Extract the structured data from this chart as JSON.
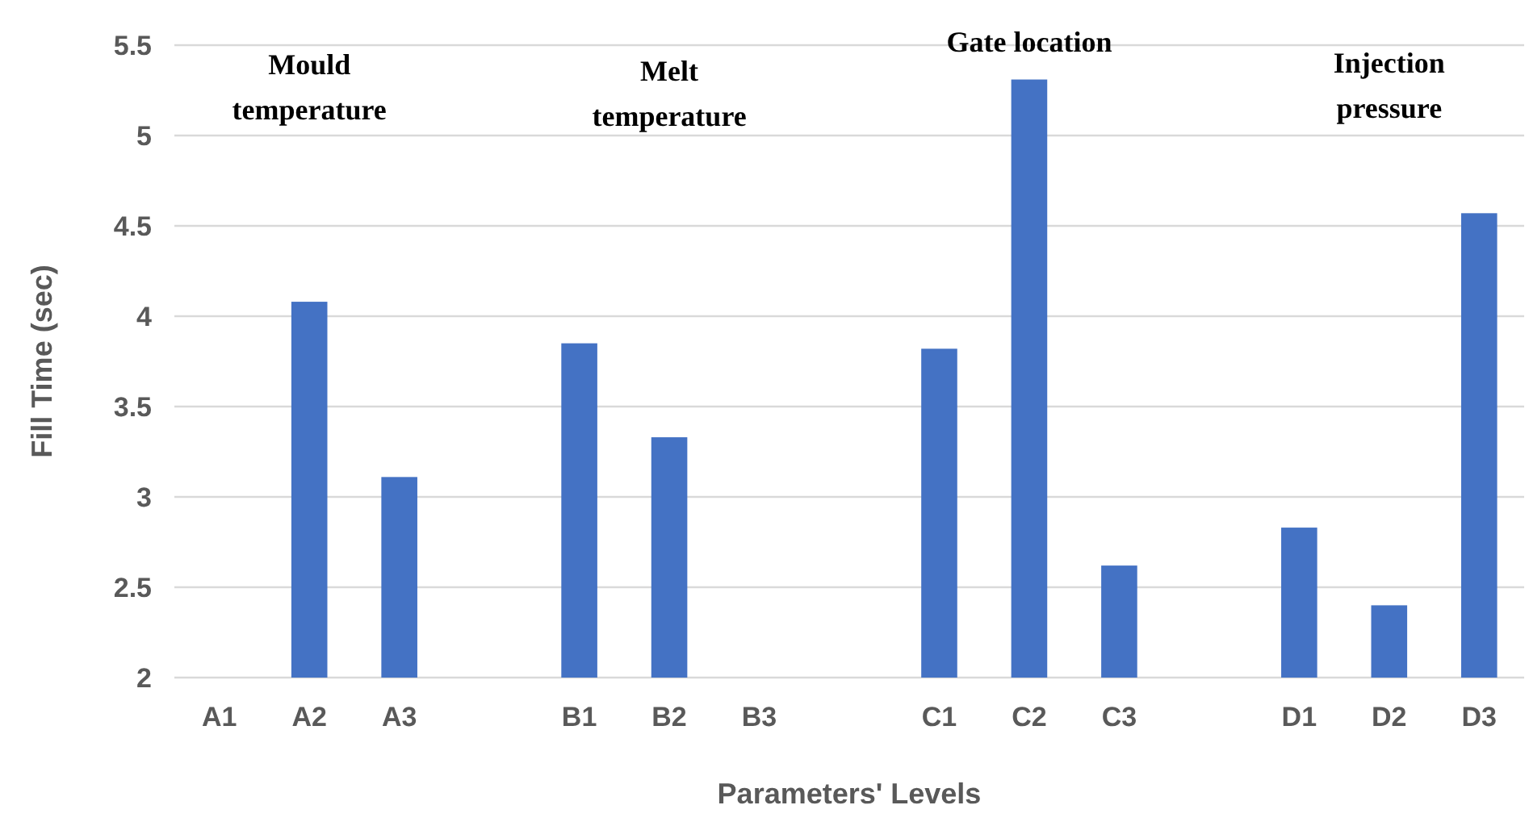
{
  "chart_data": {
    "type": "bar",
    "xlabel": "Parameters' Levels",
    "ylabel": "Fill Time (sec)",
    "categories": [
      "A1",
      "A2",
      "A3",
      null,
      "B1",
      "B2",
      "B3",
      null,
      "C1",
      "C2",
      "C3",
      null,
      "D1",
      "D2",
      "D3"
    ],
    "values": [
      null,
      4.08,
      3.11,
      null,
      3.85,
      3.33,
      null,
      null,
      3.82,
      5.31,
      2.62,
      null,
      2.83,
      2.4,
      4.57
    ],
    "color": "#4472c4",
    "ylim": [
      2,
      5.5
    ],
    "yticks": [
      2,
      2.5,
      3,
      3.5,
      4,
      4.5,
      5,
      5.5
    ],
    "grid": "y",
    "annotations": [
      "Mould\ntemperature",
      "Melt\ntemperature",
      "Gate location",
      "Injection\npressure"
    ]
  }
}
